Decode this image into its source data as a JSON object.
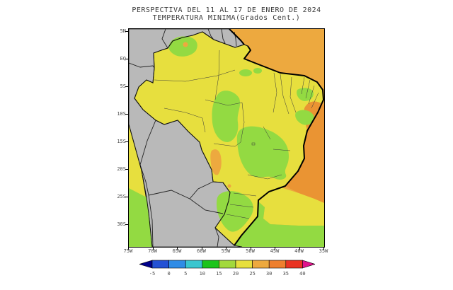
{
  "title": {
    "line1": "PERSPECTIVA DEL 11 AL 17 DE ENERO DE 2024",
    "line2": "TEMPERATURA MINIMA(Grados Cent.)"
  },
  "map": {
    "lat_ticks": [
      "5N",
      "EQ",
      "5S",
      "10S",
      "15S",
      "20S",
      "25S",
      "30S"
    ],
    "lon_ticks": [
      "75W",
      "70W",
      "65W",
      "60W",
      "55W",
      "50W",
      "45W",
      "40W",
      "35W"
    ],
    "masked_region": "countries outside Brazil shown in gray",
    "regions": [
      {
        "area": "northern-amazon-brazil",
        "temp_band_c": "20 to 25"
      },
      {
        "area": "roraima-patch",
        "temp_band_c": "15 to 20"
      },
      {
        "area": "central-plateau-tocantins-goias-minas",
        "temp_band_c": "15 to 20"
      },
      {
        "area": "northeast-coastal-patches",
        "temp_band_c": "15 to 20"
      },
      {
        "area": "southern-brazil",
        "temp_band_c": "15 to 20"
      },
      {
        "area": "west-mato-grosso-do-sul-strip",
        "temp_band_c": "25 to 30"
      },
      {
        "area": "tropical-atlantic-ocean",
        "temp_band_c": "25 to 30"
      },
      {
        "area": "offshore-southeast-atlantic",
        "temp_band_c": "30 to 35"
      },
      {
        "area": "south-atlantic-ocean",
        "temp_band_c": "15 to 25"
      },
      {
        "area": "southeast-pacific-ocean",
        "temp_band_c": "15 to 25"
      },
      {
        "area": "non-brazil-landmass",
        "temp_band_c": "masked-gray"
      }
    ]
  },
  "colors": {
    "masked_land": "#b9b9b9",
    "band_15_20": "#93da42",
    "band_20_25": "#e7df3e",
    "band_25_30": "#eda93f",
    "band_30_35": "#ea9433",
    "border_black": "#000000",
    "frame": "#000000"
  },
  "colorbar": {
    "tick_labels": [
      "-5",
      "0",
      "5",
      "10",
      "15",
      "20",
      "25",
      "30",
      "35",
      "40"
    ],
    "cell_colors": [
      "#2351d4",
      "#2f8ce6",
      "#3ac6cf",
      "#1cc41c",
      "#a2d93c",
      "#e7df3e",
      "#eda93f",
      "#ee7f2e",
      "#e93323"
    ],
    "left_tip_color": "#00008b",
    "right_tip_color": "#e0148c"
  },
  "chart_data": {
    "type": "heatmap",
    "title": "PERSPECTIVA DEL 11 AL 17 DE ENERO DE 2024 — TEMPERATURA MINIMA (Grados Cent.)",
    "x_axis": {
      "label": "longitude",
      "ticks": [
        "75W",
        "70W",
        "65W",
        "60W",
        "55W",
        "50W",
        "45W",
        "40W",
        "35W"
      ]
    },
    "y_axis": {
      "label": "latitude",
      "ticks": [
        "5N",
        "EQ",
        "5S",
        "10S",
        "15S",
        "20S",
        "25S",
        "30S"
      ]
    },
    "legend": {
      "position": "bottom",
      "boundaries_c": [
        -5,
        0,
        5,
        10,
        15,
        20,
        25,
        30,
        35,
        40
      ]
    }
  }
}
